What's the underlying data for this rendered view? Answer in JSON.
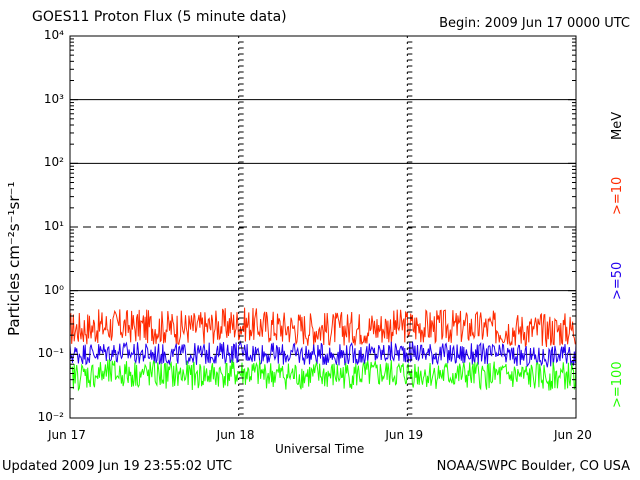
{
  "header": {
    "title": "GOES11 Proton Flux (5 minute data)",
    "begin": "Begin: 2009 Jun 17 0000 UTC"
  },
  "footer": {
    "updated": "Updated 2009 Jun 19 23:55:02 UTC",
    "credit": "NOAA/SWPC Boulder, CO USA"
  },
  "side_labels": {
    "unit": "MeV",
    "ge10": ">=10",
    "ge50": ">=50",
    "ge100": ">=100"
  },
  "colors": {
    "ge10": "#ff2a00",
    "ge50": "#2200ee",
    "ge100": "#22ff00",
    "axis": "#000000"
  },
  "chart_data": {
    "type": "line",
    "title": "GOES11 Proton Flux (5 minute data)",
    "xlabel": "Universal Time",
    "ylabel": "Particles cm⁻²s⁻¹sr⁻¹",
    "yscale": "log",
    "ylim": [
      0.01,
      10000
    ],
    "ytick_labels": [
      "10⁴",
      "10³",
      "10²",
      "10¹",
      "10⁰",
      "10⁻¹",
      "10⁻²"
    ],
    "ytick_values": [
      10000,
      1000,
      100,
      10,
      1,
      0.1,
      0.01
    ],
    "xlim": [
      "2009-06-17",
      "2009-06-20"
    ],
    "x_tick_labels": [
      "Jun 17",
      "Jun 18",
      "Jun 19",
      "Jun 20"
    ],
    "x_tick_values": [
      "2009-06-17",
      "2009-06-18",
      "2009-06-19",
      "2009-06-20"
    ],
    "grid": true,
    "series": [
      {
        "name": ">=10",
        "color": "#ff2a00",
        "x": [
          "2009-06-17",
          "2009-06-17 06:00",
          "2009-06-17 12:00",
          "2009-06-17 18:00",
          "2009-06-18",
          "2009-06-18 06:00",
          "2009-06-18 12:00",
          "2009-06-18 18:00",
          "2009-06-19",
          "2009-06-19 06:00",
          "2009-06-19 12:00",
          "2009-06-19 18:00",
          "2009-06-20"
        ],
        "values": [
          0.25,
          0.28,
          0.27,
          0.26,
          0.3,
          0.27,
          0.25,
          0.26,
          0.28,
          0.27,
          0.26,
          0.24,
          0.25
        ]
      },
      {
        "name": ">=50",
        "color": "#2200ee",
        "x": [
          "2009-06-17",
          "2009-06-17 06:00",
          "2009-06-17 12:00",
          "2009-06-17 18:00",
          "2009-06-18",
          "2009-06-18 06:00",
          "2009-06-18 12:00",
          "2009-06-18 18:00",
          "2009-06-19",
          "2009-06-19 06:00",
          "2009-06-19 12:00",
          "2009-06-19 18:00",
          "2009-06-20"
        ],
        "values": [
          0.1,
          0.11,
          0.1,
          0.1,
          0.11,
          0.1,
          0.1,
          0.1,
          0.11,
          0.1,
          0.1,
          0.09,
          0.1
        ]
      },
      {
        "name": ">=100",
        "color": "#22ff00",
        "x": [
          "2009-06-17",
          "2009-06-17 06:00",
          "2009-06-17 12:00",
          "2009-06-17 18:00",
          "2009-06-18",
          "2009-06-18 06:00",
          "2009-06-18 12:00",
          "2009-06-18 18:00",
          "2009-06-19",
          "2009-06-19 06:00",
          "2009-06-19 12:00",
          "2009-06-19 18:00",
          "2009-06-20"
        ],
        "values": [
          0.045,
          0.05,
          0.048,
          0.046,
          0.05,
          0.047,
          0.046,
          0.048,
          0.05,
          0.047,
          0.046,
          0.044,
          0.046
        ]
      }
    ]
  }
}
